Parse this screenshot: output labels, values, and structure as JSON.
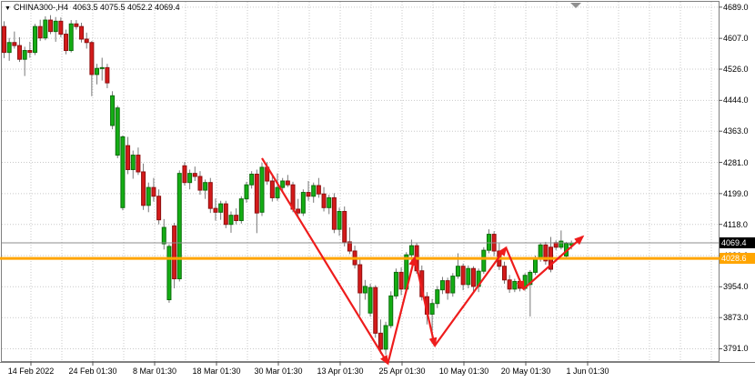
{
  "window": {
    "symbol": "CHINA300-,H4",
    "ohlc_text": "4063.5 4075.5 4052.2 4069.4",
    "dropdown_icon": "▼"
  },
  "colors": {
    "background": "#ffffff",
    "grid": "#c9c9c9",
    "border": "#808080",
    "candle_up_fill": "#14ae14",
    "candle_up_border": "#0b6e0b",
    "candle_down_fill": "#d41a1a",
    "candle_down_border": "#8f0f0f",
    "wick": "#787878",
    "trend_arrow": "#ee1c1c",
    "hline": "#ffa500",
    "current_price_line": "#8c8c8c",
    "current_price_tag_bg": "#000000",
    "hline_tag_bg": "#ffa500",
    "shift_marker": "#909090"
  },
  "chart_data": {
    "type": "candlestick",
    "title": "CHINA300-,H4",
    "timeframe": "H4",
    "current_bar": {
      "open": 4063.5,
      "high": 4075.5,
      "low": 4052.2,
      "close": 4069.4
    },
    "ylim": [
      3758.7,
      4703.0
    ],
    "y_ticks": [
      4689.0,
      4607.0,
      4526.0,
      4444.0,
      4363.0,
      4281.0,
      4199.0,
      4118.0,
      4036.0,
      3954.0,
      3873.0,
      3791.0
    ],
    "y_tick_labels": [
      "4689.0",
      "4607.0",
      "4526.0",
      "4444.0",
      "4363.0",
      "4281.0",
      "4199.0",
      "4118.0",
      "4036.0",
      "3954.0",
      "3873.0",
      "3791.0"
    ],
    "x_tick_labels": [
      "14 Feb 2022",
      "24 Feb 01:30",
      "8 Mar 01:30",
      "18 Mar 01:30",
      "30 Mar 01:30",
      "13 Apr 01:30",
      "25 Apr 01:30",
      "10 May 01:30",
      "20 May 01:30",
      "1 Jun 01:30"
    ],
    "grid": true,
    "current_price": {
      "price": 4069.4,
      "label": "4069.4"
    },
    "h_line": {
      "price": 4028.6,
      "label": "4028.6"
    },
    "trend_arrows": [
      {
        "from": [
          50,
          4292
        ],
        "to": [
          74.4,
          3752
        ]
      },
      {
        "from": [
          74.4,
          3752
        ],
        "to": [
          79.6,
          4031
        ]
      },
      {
        "from": [
          79.6,
          4031
        ],
        "to": [
          83.5,
          3799
        ]
      },
      {
        "from": [
          83.5,
          3799
        ],
        "to": [
          97.3,
          4057
        ]
      },
      {
        "from": [
          97.3,
          4057
        ],
        "to": [
          100.7,
          3948
        ]
      },
      {
        "from": [
          100.7,
          3948
        ],
        "to": [
          112.2,
          4086
        ]
      }
    ],
    "candles_ohlc": [
      [
        4638,
        4652,
        4555,
        4570
      ],
      [
        4570,
        4608,
        4548,
        4596
      ],
      [
        4596,
        4625,
        4580,
        4588
      ],
      [
        4588,
        4610,
        4545,
        4552
      ],
      [
        4552,
        4585,
        4508,
        4575
      ],
      [
        4575,
        4598,
        4556,
        4570
      ],
      [
        4570,
        4645,
        4563,
        4638
      ],
      [
        4638,
        4656,
        4600,
        4608
      ],
      [
        4608,
        4665,
        4602,
        4655
      ],
      [
        4655,
        4668,
        4618,
        4625
      ],
      [
        4625,
        4663,
        4598,
        4652
      ],
      [
        4652,
        4662,
        4610,
        4618
      ],
      [
        4618,
        4630,
        4565,
        4575
      ],
      [
        4575,
        4655,
        4570,
        4645
      ],
      [
        4645,
        4655,
        4630,
        4638
      ],
      [
        4638,
        4648,
        4596,
        4605
      ],
      [
        4605,
        4622,
        4580,
        4596
      ],
      [
        4596,
        4600,
        4455,
        4512
      ],
      [
        4512,
        4540,
        4486,
        4528
      ],
      [
        4528,
        4556,
        4496,
        4530
      ],
      [
        4530,
        4540,
        4476,
        4490
      ],
      [
        4378,
        4468,
        4368,
        4456
      ],
      [
        4300,
        4430,
        4292,
        4424
      ],
      [
        4162,
        4352,
        4155,
        4348
      ],
      [
        4325,
        4348,
        4250,
        4262
      ],
      [
        4262,
        4312,
        4238,
        4300
      ],
      [
        4300,
        4320,
        4248,
        4256
      ],
      [
        4256,
        4278,
        4156,
        4168
      ],
      [
        4168,
        4228,
        4150,
        4215
      ],
      [
        4215,
        4240,
        4178,
        4192
      ],
      [
        4192,
        4210,
        4118,
        4130
      ],
      [
        4067,
        4132,
        4052,
        4110
      ],
      [
        3920,
        4066,
        3912,
        4060
      ],
      [
        4114,
        4122,
        3950,
        3975
      ],
      [
        3975,
        4260,
        3968,
        4252
      ],
      [
        4272,
        4282,
        4220,
        4228
      ],
      [
        4228,
        4262,
        4210,
        4252
      ],
      [
        4252,
        4270,
        4232,
        4244
      ],
      [
        4244,
        4258,
        4196,
        4208
      ],
      [
        4208,
        4236,
        4185,
        4228
      ],
      [
        4228,
        4240,
        4148,
        4160
      ],
      [
        4160,
        4186,
        4128,
        4150
      ],
      [
        4150,
        4180,
        4130,
        4172
      ],
      [
        4172,
        4180,
        4108,
        4118
      ],
      [
        4118,
        4152,
        4096,
        4142
      ],
      [
        4142,
        4160,
        4118,
        4128
      ],
      [
        4128,
        4192,
        4120,
        4185
      ],
      [
        4185,
        4230,
        4175,
        4222
      ],
      [
        4222,
        4258,
        4212,
        4250
      ],
      [
        4250,
        4262,
        4095,
        4148
      ],
      [
        4150,
        4280,
        4140,
        4268
      ],
      [
        4268,
        4282,
        4222,
        4232
      ],
      [
        4232,
        4245,
        4178,
        4188
      ],
      [
        4188,
        4252,
        4180,
        4215
      ],
      [
        4215,
        4240,
        4205,
        4232
      ],
      [
        4232,
        4248,
        4216,
        4222
      ],
      [
        4222,
        4230,
        4150,
        4158
      ],
      [
        4158,
        4185,
        4138,
        4148
      ],
      [
        4148,
        4210,
        4140,
        4202
      ],
      [
        4202,
        4232,
        4180,
        4192
      ],
      [
        4192,
        4228,
        4175,
        4220
      ],
      [
        4220,
        4240,
        4188,
        4198
      ],
      [
        4198,
        4216,
        4152,
        4162
      ],
      [
        4162,
        4196,
        4145,
        4188
      ],
      [
        4188,
        4200,
        4095,
        4105
      ],
      [
        4105,
        4162,
        4088,
        4152
      ],
      [
        4152,
        4165,
        4060,
        4072
      ],
      [
        4072,
        4110,
        4040,
        4048
      ],
      [
        4048,
        4062,
        4002,
        4012
      ],
      [
        4012,
        4028,
        3878,
        3938
      ],
      [
        3938,
        3972,
        3920,
        3955
      ],
      [
        3885,
        3962,
        3876,
        3952
      ],
      [
        3952,
        3958,
        3820,
        3832
      ],
      [
        3832,
        3868,
        3778,
        3790
      ],
      [
        3790,
        3862,
        3775,
        3852
      ],
      [
        3852,
        3942,
        3845,
        3930
      ],
      [
        3930,
        4002,
        3922,
        3992
      ],
      [
        3992,
        4005,
        3932,
        3948
      ],
      [
        3948,
        4045,
        3940,
        4038
      ],
      [
        4038,
        4078,
        4018,
        4062
      ],
      [
        4062,
        4070,
        3988,
        3996
      ],
      [
        3996,
        4010,
        3918,
        3928
      ],
      [
        3928,
        3940,
        3855,
        3882
      ],
      [
        3882,
        3922,
        3805,
        3910
      ],
      [
        3910,
        3956,
        3898,
        3946
      ],
      [
        3946,
        3980,
        3935,
        3970
      ],
      [
        3970,
        3978,
        3920,
        3938
      ],
      [
        3938,
        3990,
        3928,
        3982
      ],
      [
        3982,
        4042,
        3975,
        4008
      ],
      [
        4008,
        4015,
        3945,
        3960
      ],
      [
        3960,
        4010,
        3950,
        4002
      ],
      [
        4002,
        4008,
        3938,
        3955
      ],
      [
        3955,
        4002,
        3940,
        3995
      ],
      [
        3995,
        4058,
        3988,
        4050
      ],
      [
        4050,
        4105,
        4042,
        4092
      ],
      [
        4092,
        4100,
        4035,
        4048
      ],
      [
        4048,
        4068,
        3998,
        4008
      ],
      [
        4008,
        4020,
        3962,
        3972
      ],
      [
        3972,
        3985,
        3938,
        3948
      ],
      [
        3948,
        3975,
        3940,
        3968
      ],
      [
        3968,
        3976,
        3942,
        3950
      ],
      [
        3950,
        3990,
        3944,
        3984
      ],
      [
        3960,
        3998,
        3876,
        3992
      ],
      [
        3992,
        4036,
        3985,
        4028
      ],
      [
        4028,
        4070,
        4020,
        4064
      ],
      [
        4064,
        4072,
        4012,
        4022
      ],
      [
        4058,
        4085,
        3992,
        4000
      ],
      [
        4070,
        4076,
        4050,
        4058
      ],
      [
        4058,
        4102,
        4052,
        4074
      ],
      [
        4035,
        4072,
        4028,
        4068
      ],
      [
        4063.5,
        4075.5,
        4052.2,
        4069.4
      ]
    ]
  }
}
